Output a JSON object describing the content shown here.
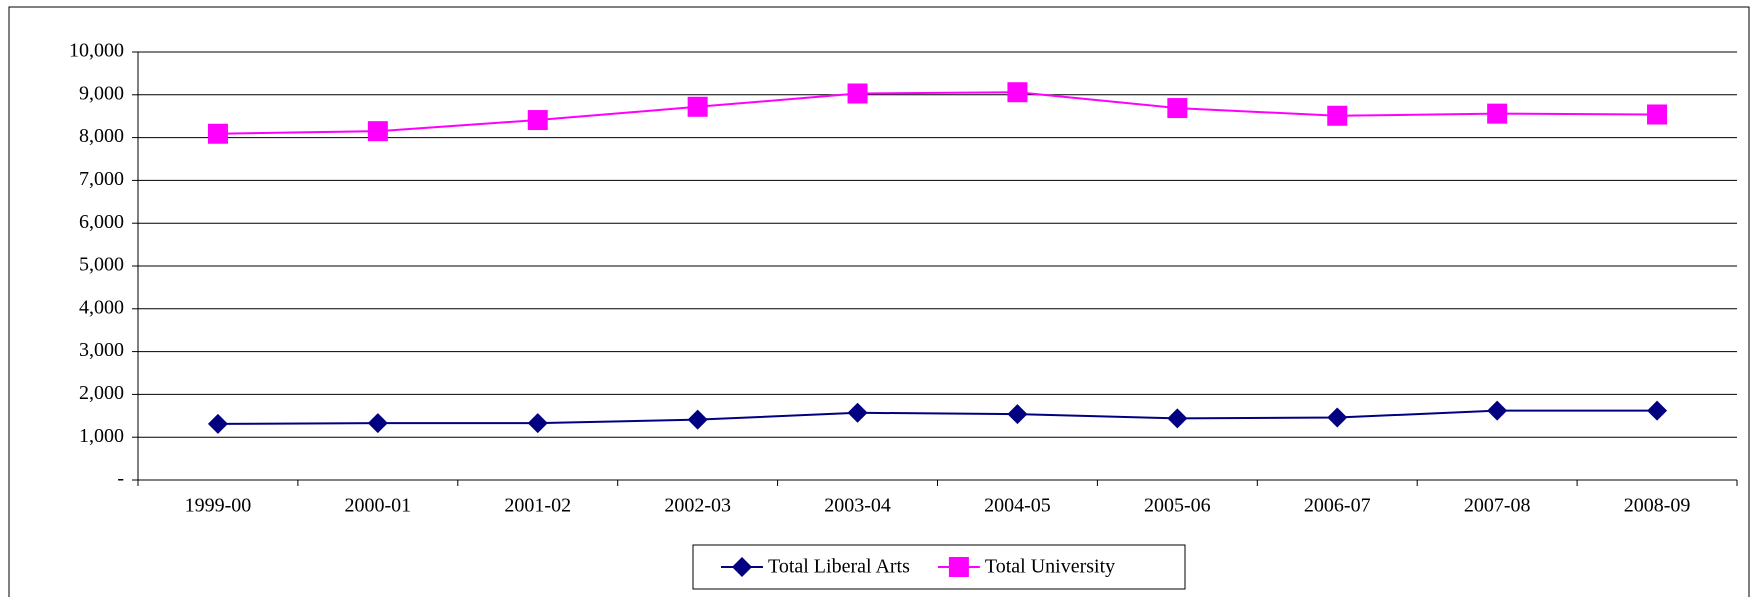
{
  "chart_data": {
    "type": "line",
    "categories": [
      "1999-00",
      "2000-01",
      "2001-02",
      "2002-03",
      "2003-04",
      "2004-05",
      "2005-06",
      "2006-07",
      "2007-08",
      "2008-09"
    ],
    "series": [
      {
        "name": "Total Liberal Arts",
        "color": "#000080",
        "marker": "diamond",
        "values": [
          1310,
          1330,
          1330,
          1410,
          1570,
          1540,
          1440,
          1460,
          1620,
          1620
        ]
      },
      {
        "name": "Total University",
        "color": "#ff00ff",
        "marker": "square",
        "values": [
          8090,
          8150,
          8410,
          8720,
          9030,
          9060,
          8690,
          8510,
          8560,
          8540
        ]
      }
    ],
    "ylim": [
      0,
      10000
    ],
    "yticks": [
      {
        "value": 0,
        "label": "-"
      },
      {
        "value": 1000,
        "label": "1,000"
      },
      {
        "value": 2000,
        "label": "2,000"
      },
      {
        "value": 3000,
        "label": "3,000"
      },
      {
        "value": 4000,
        "label": "4,000"
      },
      {
        "value": 5000,
        "label": "5,000"
      },
      {
        "value": 6000,
        "label": "6,000"
      },
      {
        "value": 7000,
        "label": "7,000"
      },
      {
        "value": 8000,
        "label": "8,000"
      },
      {
        "value": 9000,
        "label": "9,000"
      },
      {
        "value": 10000,
        "label": "10,000"
      }
    ],
    "grid": true,
    "legend": "bottom"
  }
}
